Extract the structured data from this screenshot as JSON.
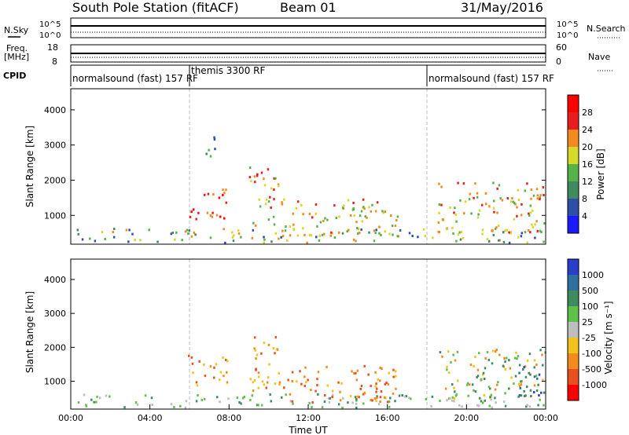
{
  "header": {
    "station": "South Pole Station (fitACF)",
    "beam": "Beam 01",
    "date": "31/May/2016"
  },
  "status_panels": {
    "nsky_label": "N.Sky",
    "nsearch_label": "N.Search",
    "freq_label_1": "Freq.",
    "freq_label_2": "[MHz]",
    "nave_label": "Nave",
    "cpid_label": "CPID",
    "noise_left_top": "10^5",
    "noise_left_bottom": "10^0",
    "noise_right_top": "10^5",
    "noise_right_bottom": "10^0",
    "freq_left_top": "18",
    "freq_left_bottom": "8",
    "nave_right_top": "60",
    "nave_right_bottom": "0",
    "cpid_segments": [
      {
        "label": "normalsound (fast) 157 RF",
        "start_hour": 0
      },
      {
        "label": "themis 3300 RF",
        "start_hour": 6
      },
      {
        "label": "normalsound (fast) 157 RF",
        "start_hour": 18
      }
    ]
  },
  "x_axis": {
    "label": "Time UT",
    "ticks": [
      "00:00",
      "04:00",
      "08:00",
      "12:00",
      "16:00",
      "20:00",
      "00:00"
    ]
  },
  "chart_data": [
    {
      "type": "heatmap",
      "name": "power",
      "ylabel": "Slant Range [km]",
      "colorbar_label": "Power [dB]",
      "x_range_hours": [
        0,
        24
      ],
      "ylim": [
        180,
        4600
      ],
      "y_ticks": [
        1000,
        2000,
        3000,
        4000
      ],
      "colorbar_ticks": [
        "4",
        "8",
        "12",
        "16",
        "20",
        "24",
        "28"
      ],
      "colorbar_colors": [
        "#1a1aff",
        "#2e4fa8",
        "#3f8a5e",
        "#57b24a",
        "#d8d82a",
        "#f28a1d",
        "#e81e1e",
        "#ff0000"
      ],
      "mode_boundaries_hours": [
        6,
        18
      ],
      "echo_regions": [
        {
          "t": [
            0.3,
            24.0
          ],
          "r": [
            250,
            650
          ],
          "level": "low-mid"
        },
        {
          "t": [
            5.9,
            7.9
          ],
          "r": [
            900,
            1800
          ],
          "level": "high"
        },
        {
          "t": [
            9.0,
            10.5
          ],
          "r": [
            700,
            2400
          ],
          "level": "mid-high"
        },
        {
          "t": [
            10.5,
            16.5
          ],
          "r": [
            400,
            1500
          ],
          "level": "mid-high"
        },
        {
          "t": [
            18.5,
            24.0
          ],
          "r": [
            500,
            2000
          ],
          "level": "mid-high"
        },
        {
          "t": [
            6.8,
            7.4
          ],
          "r": [
            2600,
            3400
          ],
          "level": "low"
        }
      ]
    },
    {
      "type": "heatmap",
      "name": "velocity",
      "ylabel": "Slant Range [km]",
      "colorbar_label": "Velocity [m s⁻¹]",
      "x_range_hours": [
        0,
        24
      ],
      "ylim": [
        180,
        4600
      ],
      "y_ticks": [
        1000,
        2000,
        3000,
        4000
      ],
      "colorbar_ticks": [
        "1000",
        "500",
        "100",
        "25",
        "-25",
        "-100",
        "-500",
        "-1000"
      ],
      "colorbar_colors": [
        "#2a3fc9",
        "#2f6f9f",
        "#3f8a5e",
        "#5fc04a",
        "#bebebe",
        "#f2c21d",
        "#f28a1d",
        "#e8501e",
        "#ff0000"
      ],
      "mode_boundaries_hours": [
        6,
        18
      ],
      "echo_regions": [
        {
          "t": [
            0.3,
            24.0
          ],
          "r": [
            250,
            650
          ],
          "sign": "positive-slow"
        },
        {
          "t": [
            5.9,
            7.9
          ],
          "r": [
            900,
            1800
          ],
          "sign": "negative-moderate"
        },
        {
          "t": [
            9.0,
            10.5
          ],
          "r": [
            700,
            2400
          ],
          "sign": "negative-moderate"
        },
        {
          "t": [
            10.5,
            16.5
          ],
          "r": [
            400,
            1500
          ],
          "sign": "negative-moderate"
        },
        {
          "t": [
            18.5,
            24.0
          ],
          "r": [
            500,
            2000
          ],
          "sign": "mixed"
        },
        {
          "t": [
            22.5,
            24.0
          ],
          "r": [
            600,
            1600
          ],
          "sign": "positive-fast"
        }
      ]
    }
  ]
}
